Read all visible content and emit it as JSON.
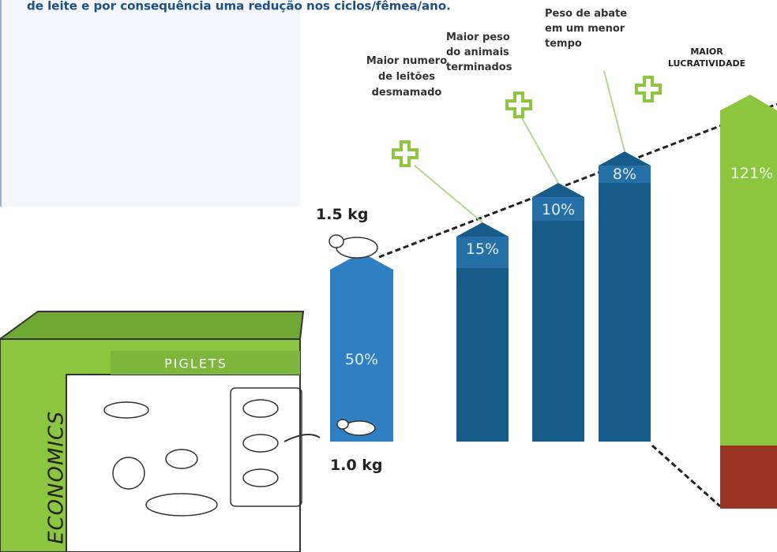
{
  "header": {
    "text": "de leite e por consequência uma redução nos ciclos/fêmea/ano."
  },
  "weights": {
    "top": "1.5 kg",
    "bottom": "1.0 kg"
  },
  "bars": [
    {
      "label": "50%"
    },
    {
      "label": "15%",
      "caption": "Maior numero de leitões desmamado"
    },
    {
      "label": "10%",
      "caption": "Maior peso do animais terminados"
    },
    {
      "label": "8%",
      "caption": "Peso de abate em um menor tempo"
    },
    {
      "label": "121%",
      "caption": "MAIOR LUCRATIVIDADE"
    }
  ],
  "box": {
    "side": "ECONOMICS",
    "top": "PIGLETS"
  }
}
